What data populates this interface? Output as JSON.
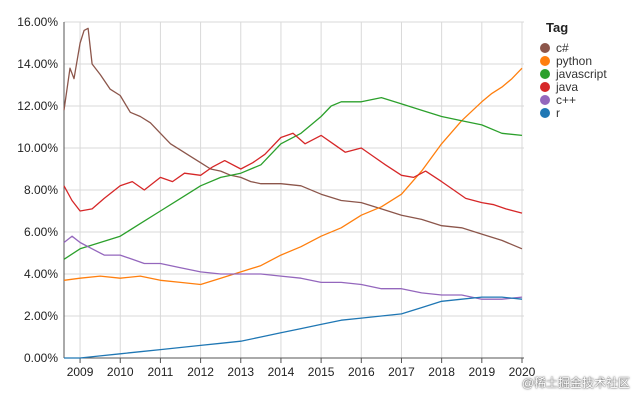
{
  "chart_data": {
    "type": "line",
    "title": "",
    "xlabel": "",
    "ylabel": "",
    "ylim": [
      0,
      16
    ],
    "xlim": [
      2008.6,
      2020.05
    ],
    "grid": true,
    "y_ticks": [
      "0.00%",
      "2.00%",
      "4.00%",
      "6.00%",
      "8.00%",
      "10.00%",
      "12.00%",
      "14.00%",
      "16.00%"
    ],
    "x_ticks": [
      "2009",
      "2010",
      "2011",
      "2012",
      "2013",
      "2014",
      "2015",
      "2016",
      "2017",
      "2018",
      "2019",
      "2020"
    ],
    "legend": {
      "title": "Tag",
      "placement": "right"
    },
    "series": [
      {
        "name": "c#",
        "color": "#8c564b",
        "x": [
          2008.6,
          2008.75,
          2008.85,
          2009.0,
          2009.1,
          2009.2,
          2009.3,
          2009.5,
          2009.75,
          2010.0,
          2010.25,
          2010.5,
          2010.75,
          2011.0,
          2011.25,
          2011.5,
          2011.75,
          2012.0,
          2012.25,
          2012.5,
          2012.75,
          2013.0,
          2013.25,
          2013.5,
          2013.75,
          2014.0,
          2014.5,
          2015.0,
          2015.5,
          2016.0,
          2016.5,
          2017.0,
          2017.5,
          2018.0,
          2018.5,
          2019.0,
          2019.5,
          2020.0
        ],
        "y": [
          11.8,
          13.8,
          13.3,
          15.0,
          15.6,
          15.7,
          14.0,
          13.5,
          12.8,
          12.5,
          11.7,
          11.5,
          11.2,
          10.7,
          10.2,
          9.9,
          9.6,
          9.3,
          9.0,
          8.9,
          8.7,
          8.6,
          8.4,
          8.3,
          8.3,
          8.3,
          8.2,
          7.8,
          7.5,
          7.4,
          7.1,
          6.8,
          6.6,
          6.3,
          6.2,
          5.9,
          5.6,
          5.2
        ]
      },
      {
        "name": "python",
        "color": "#ff7f0e",
        "x": [
          2008.6,
          2009.0,
          2009.5,
          2010.0,
          2010.5,
          2011.0,
          2011.5,
          2012.0,
          2012.5,
          2013.0,
          2013.5,
          2014.0,
          2014.5,
          2015.0,
          2015.5,
          2016.0,
          2016.5,
          2017.0,
          2017.5,
          2018.0,
          2018.5,
          2019.0,
          2019.25,
          2019.5,
          2019.75,
          2020.0
        ],
        "y": [
          3.7,
          3.8,
          3.9,
          3.8,
          3.9,
          3.7,
          3.6,
          3.5,
          3.8,
          4.1,
          4.4,
          4.9,
          5.3,
          5.8,
          6.2,
          6.8,
          7.2,
          7.8,
          8.9,
          10.2,
          11.3,
          12.2,
          12.6,
          12.9,
          13.3,
          13.8
        ]
      },
      {
        "name": "javascript",
        "color": "#2ca02c",
        "x": [
          2008.6,
          2009.0,
          2009.5,
          2010.0,
          2010.5,
          2011.0,
          2011.5,
          2012.0,
          2012.5,
          2013.0,
          2013.5,
          2014.0,
          2014.5,
          2015.0,
          2015.25,
          2015.5,
          2016.0,
          2016.5,
          2017.0,
          2017.5,
          2018.0,
          2018.5,
          2019.0,
          2019.5,
          2020.0
        ],
        "y": [
          4.7,
          5.2,
          5.5,
          5.8,
          6.4,
          7.0,
          7.6,
          8.2,
          8.6,
          8.8,
          9.2,
          10.2,
          10.7,
          11.5,
          12.0,
          12.2,
          12.2,
          12.4,
          12.1,
          11.8,
          11.5,
          11.3,
          11.1,
          10.7,
          10.6
        ]
      },
      {
        "name": "java",
        "color": "#d62728",
        "x": [
          2008.6,
          2008.8,
          2009.0,
          2009.3,
          2009.6,
          2010.0,
          2010.3,
          2010.6,
          2011.0,
          2011.3,
          2011.6,
          2012.0,
          2012.3,
          2012.6,
          2013.0,
          2013.3,
          2013.6,
          2014.0,
          2014.3,
          2014.6,
          2015.0,
          2015.3,
          2015.6,
          2016.0,
          2016.3,
          2016.6,
          2017.0,
          2017.3,
          2017.6,
          2018.0,
          2018.3,
          2018.6,
          2019.0,
          2019.3,
          2019.6,
          2020.0
        ],
        "y": [
          8.2,
          7.5,
          7.0,
          7.1,
          7.6,
          8.2,
          8.4,
          8.0,
          8.6,
          8.4,
          8.8,
          8.7,
          9.1,
          9.4,
          9.0,
          9.3,
          9.7,
          10.5,
          10.7,
          10.2,
          10.6,
          10.2,
          9.8,
          10.0,
          9.6,
          9.2,
          8.7,
          8.6,
          8.9,
          8.4,
          8.0,
          7.6,
          7.4,
          7.3,
          7.1,
          6.9
        ]
      },
      {
        "name": "c++",
        "color": "#9467bd",
        "x": [
          2008.6,
          2008.8,
          2009.0,
          2009.3,
          2009.6,
          2010.0,
          2010.3,
          2010.6,
          2011.0,
          2011.5,
          2012.0,
          2012.5,
          2013.0,
          2013.5,
          2014.0,
          2014.5,
          2015.0,
          2015.5,
          2016.0,
          2016.5,
          2017.0,
          2017.5,
          2018.0,
          2018.5,
          2019.0,
          2019.5,
          2020.0
        ],
        "y": [
          5.5,
          5.8,
          5.5,
          5.2,
          4.9,
          4.9,
          4.7,
          4.5,
          4.5,
          4.3,
          4.1,
          4.0,
          4.0,
          4.0,
          3.9,
          3.8,
          3.6,
          3.6,
          3.5,
          3.3,
          3.3,
          3.1,
          3.0,
          3.0,
          2.8,
          2.8,
          2.9
        ]
      },
      {
        "name": "r",
        "color": "#1f77b4",
        "x": [
          2008.6,
          2009.0,
          2009.5,
          2010.0,
          2010.5,
          2011.0,
          2011.5,
          2012.0,
          2012.5,
          2013.0,
          2013.5,
          2014.0,
          2014.5,
          2015.0,
          2015.5,
          2016.0,
          2016.5,
          2017.0,
          2017.5,
          2018.0,
          2018.5,
          2019.0,
          2019.5,
          2020.0
        ],
        "y": [
          0.0,
          0.0,
          0.1,
          0.2,
          0.3,
          0.4,
          0.5,
          0.6,
          0.7,
          0.8,
          1.0,
          1.2,
          1.4,
          1.6,
          1.8,
          1.9,
          2.0,
          2.1,
          2.4,
          2.7,
          2.8,
          2.9,
          2.9,
          2.8
        ]
      }
    ]
  },
  "watermark": "@稀土掘金技术社区"
}
